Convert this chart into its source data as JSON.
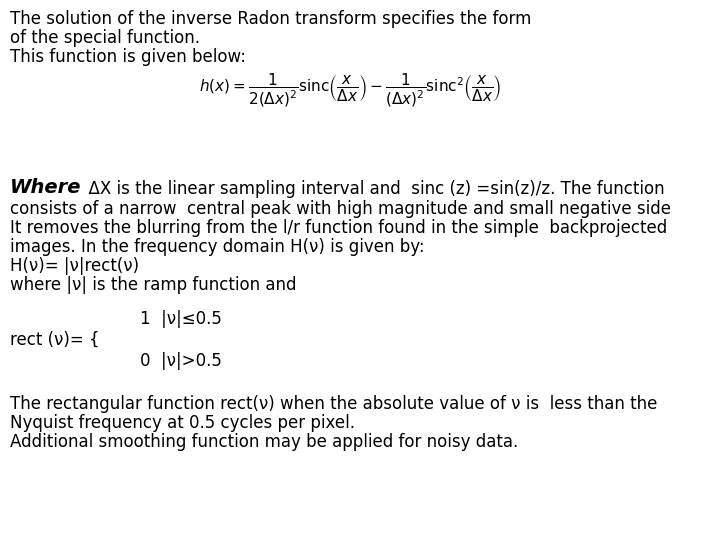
{
  "background_color": "#ffffff",
  "figsize": [
    7.2,
    5.4
  ],
  "dpi": 100,
  "font_size_main": 12,
  "font_size_where": 14,
  "font_family": "DejaVu Sans",
  "line1": "The solution of the inverse Radon transform specifies the form",
  "line2": "of the special function.",
  "line3": "This function is given below:",
  "where_word": "Where",
  "where_rest": "  ΔX is the linear sampling interval and  sinc (z) =sin(z)/z. The function",
  "line_consists": "consists of a narrow  central peak with high magnitude and small negative side",
  "line_removes": "It removes the blurring from the l/r function found in the simple  backprojected",
  "line_images": "images. In the frequency domain H(ν) is given by:",
  "line_H": "H(ν)= |ν|rect(ν)",
  "line_where2": "where |ν| is the ramp function and",
  "rect_label": "rect (ν)= {",
  "rect_1": "1  |ν|≤0.5",
  "rect_0": "0  |ν|>0.5",
  "line_rect": "The rectangular function rect(ν) when the absolute value of ν is  less than the",
  "line_nyq": "Nyquist frequency at 0.5 cycles per pixel.",
  "line_add": "Additional smoothing function may be applied for noisy data.",
  "formula_latex": "$h(x) = \\dfrac{1}{2(\\Delta x)^2}\\mathrm{sinc}\\left(\\dfrac{x}{\\Delta x}\\right) - \\dfrac{1}{(\\Delta x)^2}\\mathrm{sinc}^2\\left(\\dfrac{x}{\\Delta x}\\right)$",
  "formula_fontsize": 11
}
